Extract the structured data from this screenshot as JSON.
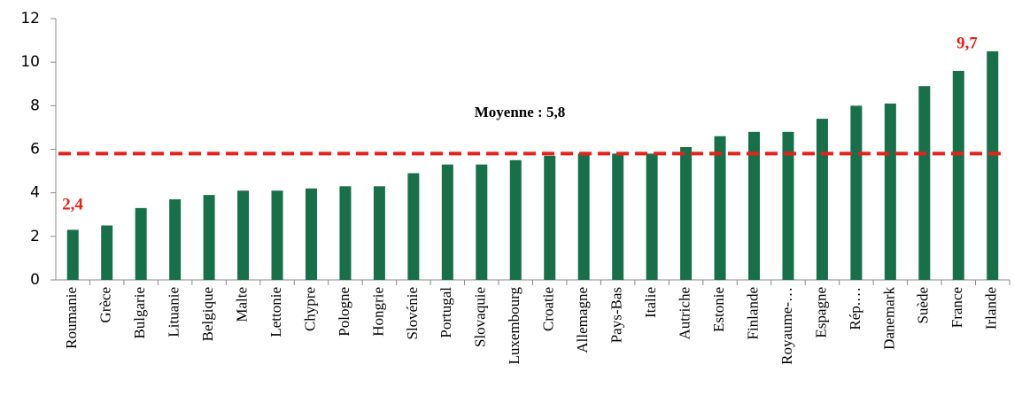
{
  "chart_data": {
    "type": "bar",
    "categories": [
      "Roumanie",
      "Grèce",
      "Bulgarie",
      "Lituanie",
      "Belgique",
      "Malte",
      "Lettonie",
      "Chypre",
      "Pologne",
      "Hongrie",
      "Slovénie",
      "Portugal",
      "Slovaquie",
      "Luxembourg",
      "Croatie",
      "Allemagne",
      "Pays-Bas",
      "Italie",
      "Autriche",
      "Estonie",
      "Finlande",
      "Royaume-…",
      "Espagne",
      "Rép.…",
      "Danemark",
      "Suède",
      "France",
      "Irlande"
    ],
    "values": [
      2.3,
      2.5,
      3.3,
      3.7,
      3.9,
      4.1,
      4.1,
      4.2,
      4.3,
      4.3,
      4.9,
      5.3,
      5.3,
      5.5,
      5.7,
      5.8,
      5.8,
      5.8,
      6.1,
      6.6,
      6.8,
      6.8,
      7.4,
      8.0,
      8.1,
      8.9,
      9.6,
      10.5
    ],
    "color": "#17704a",
    "ylim": [
      0,
      12
    ],
    "yticks": [
      0,
      2,
      4,
      6,
      8,
      10,
      12
    ],
    "reference_line": {
      "value": 5.8,
      "label": "Moyenne : 5,8",
      "color": "#e8201c"
    },
    "annotations": [
      "2,4",
      "9,7"
    ],
    "annotation_color": "#e8201c"
  }
}
